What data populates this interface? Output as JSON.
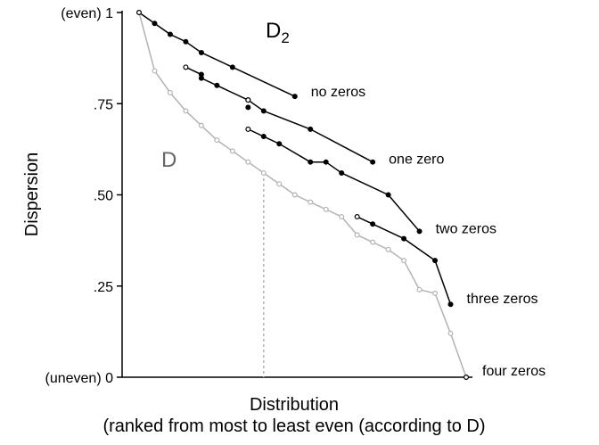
{
  "chart_data": {
    "type": "line",
    "xlabel": "Distribution",
    "xlabel_sub": "(ranked from most to least even (according to D)",
    "ylabel": "Dispersion",
    "ylim": [
      0,
      1
    ],
    "y_ticks": [
      {
        "value": 0,
        "label": "(uneven) 0"
      },
      {
        "value": 0.25,
        "label": ".25"
      },
      {
        "value": 0.5,
        "label": ".50"
      },
      {
        "value": 0.75,
        "label": ".75"
      },
      {
        "value": 1,
        "label": "(even) 1"
      }
    ],
    "x_count": 22,
    "reference_line_x": 9,
    "metric_labels": {
      "d2": "D",
      "d2_subscript": "2",
      "d": "D"
    },
    "colors": {
      "d_series": "#b3b3b3",
      "d2_series": "#000000",
      "d_label": "#666666",
      "reference": "#b3b3b3"
    },
    "series": [
      {
        "name": "D",
        "x": [
          1,
          2,
          3,
          4,
          5,
          6,
          7,
          8,
          9,
          10,
          11,
          12,
          13,
          14,
          15,
          16,
          17,
          18,
          19,
          20,
          21,
          22
        ],
        "values": [
          1.0,
          0.84,
          0.78,
          0.73,
          0.69,
          0.65,
          0.62,
          0.59,
          0.56,
          0.53,
          0.5,
          0.48,
          0.46,
          0.44,
          0.39,
          0.37,
          0.35,
          0.32,
          0.24,
          0.23,
          0.12,
          0.0
        ]
      },
      {
        "name": "no zeros",
        "x": [
          1,
          2,
          3,
          4,
          5,
          7,
          11
        ],
        "values": [
          1.0,
          0.97,
          0.94,
          0.92,
          0.89,
          0.85,
          0.77
        ]
      },
      {
        "name": "one zero",
        "x": [
          4,
          5,
          5,
          6,
          8,
          9,
          12,
          16
        ],
        "values": [
          0.85,
          0.83,
          0.82,
          0.8,
          0.76,
          0.73,
          0.68,
          0.59
        ]
      },
      {
        "name": "two zeros",
        "x": [
          8,
          9,
          10,
          12,
          13,
          14,
          17,
          19
        ],
        "values": [
          0.68,
          0.66,
          0.64,
          0.59,
          0.59,
          0.56,
          0.5,
          0.4
        ]
      },
      {
        "name": "three zeros",
        "x": [
          15,
          16,
          18,
          20,
          21
        ],
        "values": [
          0.44,
          0.42,
          0.38,
          0.32,
          0.2
        ]
      },
      {
        "name": "four zeros",
        "x": [
          22
        ],
        "values": [
          0.0
        ]
      }
    ],
    "extra_points": [
      {
        "x": 8,
        "value": 0.76
      },
      {
        "x": 8,
        "value": 0.74
      }
    ]
  }
}
